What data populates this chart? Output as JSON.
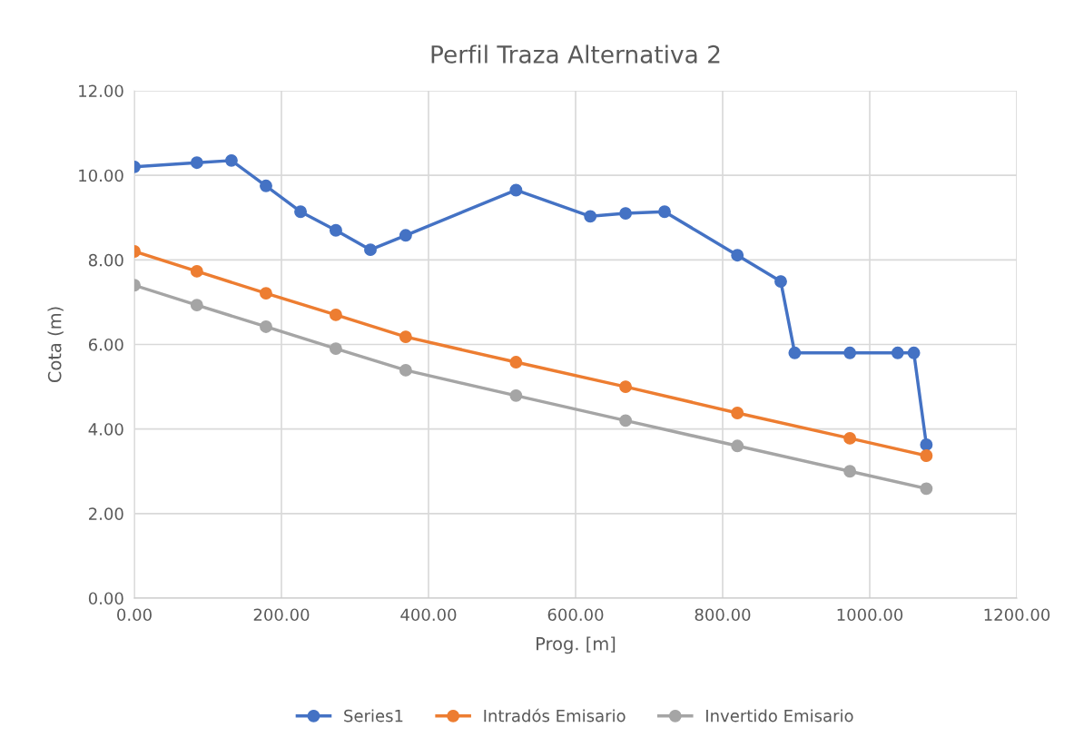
{
  "chart_data": {
    "type": "line",
    "title": "Perfil Traza Alternativa 2",
    "xlabel": "Prog. [m]",
    "ylabel": "Cota (m)",
    "xlim": [
      0,
      1200
    ],
    "xticks": [
      {
        "value": 0,
        "label": "0.00"
      },
      {
        "value": 200,
        "label": "200.00"
      },
      {
        "value": 400,
        "label": "400.00"
      },
      {
        "value": 600,
        "label": "600.00"
      },
      {
        "value": 800,
        "label": "800.00"
      },
      {
        "value": 1000,
        "label": "1000.00"
      },
      {
        "value": 1200,
        "label": "1200.00"
      }
    ],
    "ylim": [
      0,
      12
    ],
    "yticks": [
      {
        "value": 0,
        "label": "0.00"
      },
      {
        "value": 2,
        "label": "2.00"
      },
      {
        "value": 4,
        "label": "4.00"
      },
      {
        "value": 6,
        "label": "6.00"
      },
      {
        "value": 8,
        "label": "8.00"
      },
      {
        "value": 10,
        "label": "10.00"
      },
      {
        "value": 12,
        "label": "12.00"
      }
    ],
    "grid": true,
    "legend": "bottom",
    "marker": "circle",
    "line_style": "solid",
    "series": [
      {
        "name": "Series1",
        "color": "#4472c4",
        "x": [
          0,
          85,
          132,
          179,
          226,
          274,
          321,
          369,
          519,
          620,
          668,
          721,
          820,
          879,
          898,
          973,
          1038,
          1060,
          1077
        ],
        "values": [
          10.2,
          10.3,
          10.35,
          9.75,
          9.14,
          8.7,
          8.24,
          8.58,
          9.65,
          9.03,
          9.1,
          9.14,
          8.11,
          7.49,
          5.8,
          5.8,
          5.8,
          5.8,
          3.63
        ]
      },
      {
        "name": "Intradós Emisario",
        "color": "#ed7d31",
        "x": [
          0,
          85,
          179,
          274,
          369,
          519,
          668,
          820,
          973,
          1077
        ],
        "values": [
          8.2,
          7.73,
          7.21,
          6.7,
          6.18,
          5.58,
          5.0,
          4.38,
          3.78,
          3.37
        ]
      },
      {
        "name": "Invertido Emisario",
        "color": "#a5a5a5",
        "x": [
          0,
          85,
          179,
          274,
          369,
          519,
          668,
          820,
          973,
          1077
        ],
        "values": [
          7.4,
          6.93,
          6.42,
          5.9,
          5.39,
          4.79,
          4.2,
          3.6,
          3.0,
          2.59
        ]
      }
    ]
  }
}
